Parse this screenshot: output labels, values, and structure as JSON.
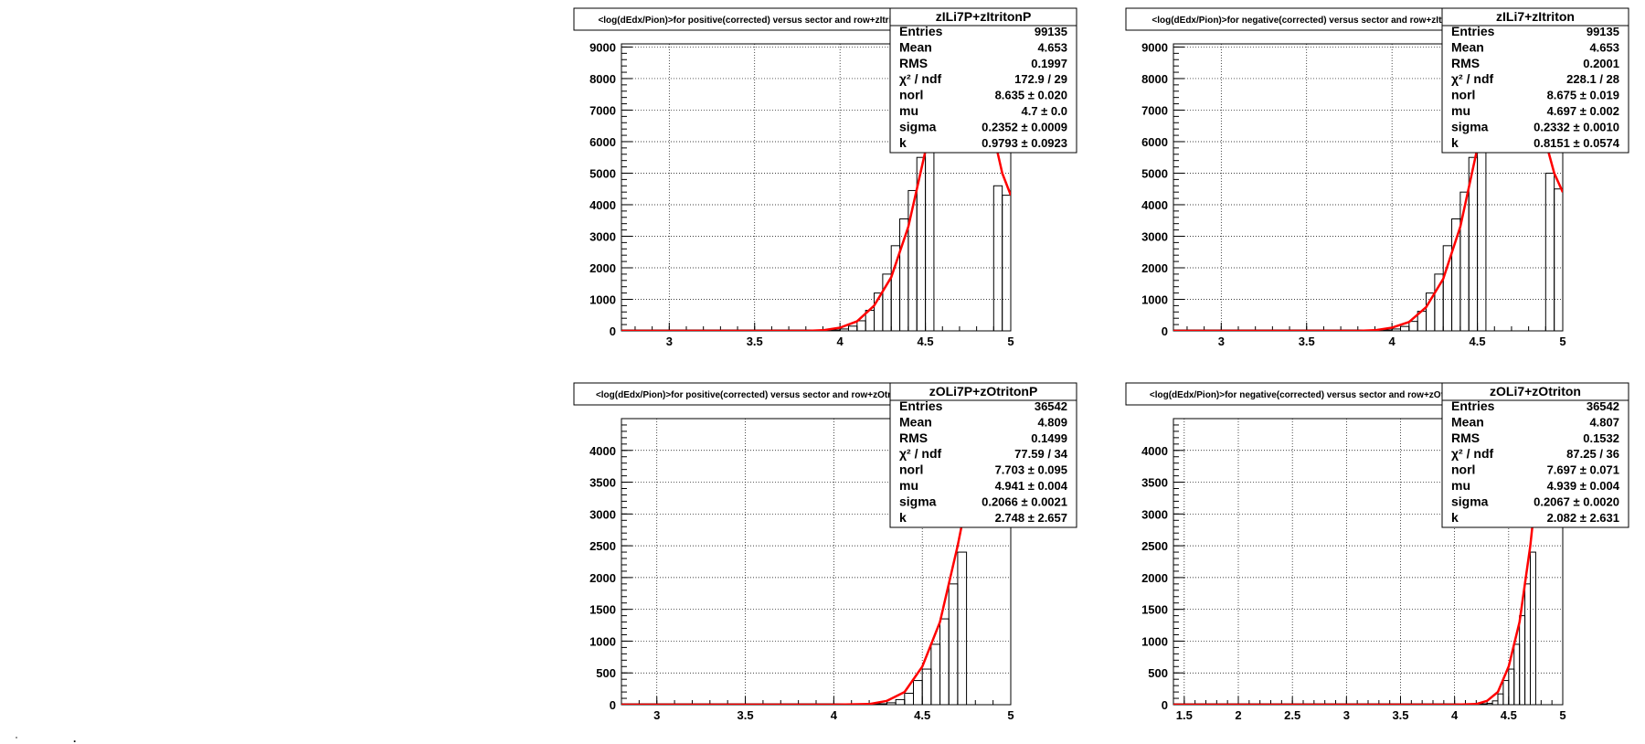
{
  "chart_data": [
    {
      "type": "histogram",
      "title": "<log(dEdx/Pion)>for positive(corrected) versus sector and row+zItritonP",
      "stats_title": "zILi7P+zItritonP",
      "x_ticks": [
        3,
        3.5,
        4,
        4.5,
        5
      ],
      "xlim": [
        2.72,
        5.0
      ],
      "y_ticks": [
        0,
        1000,
        2000,
        3000,
        4000,
        5000,
        6000,
        7000,
        8000,
        9000
      ],
      "ylim": [
        0,
        9100
      ],
      "grid": true,
      "stats": [
        {
          "name": "Entries",
          "value": "99135"
        },
        {
          "name": "Mean",
          "value": "4.653"
        },
        {
          "name": "RMS",
          "value": "0.1997"
        },
        {
          "name": "χ² / ndf",
          "value": "172.9 / 29"
        },
        {
          "name": "norl",
          "value": "8.635 ± 0.020"
        },
        {
          "name": "mu",
          "value": "4.7 ± 0.0"
        },
        {
          "name": "sigma",
          "value": "0.2352 ± 0.0009"
        },
        {
          "name": "k",
          "value": "0.9793 ± 0.0923"
        }
      ],
      "hist": {
        "x": [
          3.925,
          3.975,
          4.025,
          4.075,
          4.125,
          4.175,
          4.225,
          4.275,
          4.325,
          4.375,
          4.425,
          4.475,
          4.525
        ],
        "y": [
          10,
          30,
          60,
          150,
          320,
          650,
          1200,
          1800,
          2700,
          3550,
          4450,
          5500,
          6500
        ]
      },
      "hist_tail": {
        "x": [
          4.925,
          4.975
        ],
        "y": [
          4600,
          4300
        ]
      },
      "fit": {
        "x": [
          2.72,
          3.5,
          3.8,
          3.9,
          4.0,
          4.1,
          4.2,
          4.3,
          4.4,
          4.5,
          4.55
        ],
        "y": [
          0,
          0,
          0,
          20,
          100,
          300,
          800,
          1700,
          3300,
          5700,
          7300
        ]
      },
      "fit_tail": {
        "x": [
          4.9,
          4.95,
          5.0
        ],
        "y": [
          6200,
          5000,
          4300
        ]
      }
    },
    {
      "type": "histogram",
      "title": "<log(dEdx/Pion)>for negative(corrected) versus sector and row+zItriton",
      "stats_title": "zILi7+zItriton",
      "x_ticks": [
        3,
        3.5,
        4,
        4.5,
        5
      ],
      "xlim": [
        2.72,
        5.0
      ],
      "y_ticks": [
        0,
        1000,
        2000,
        3000,
        4000,
        5000,
        6000,
        7000,
        8000,
        9000
      ],
      "ylim": [
        0,
        9100
      ],
      "grid": true,
      "stats": [
        {
          "name": "Entries",
          "value": "99135"
        },
        {
          "name": "Mean",
          "value": "4.653"
        },
        {
          "name": "RMS",
          "value": "0.2001"
        },
        {
          "name": "χ² / ndf",
          "value": "228.1 / 28"
        },
        {
          "name": "norl",
          "value": "8.675 ± 0.019"
        },
        {
          "name": "mu",
          "value": "4.697 ± 0.002"
        },
        {
          "name": "sigma",
          "value": "0.2332 ± 0.0010"
        },
        {
          "name": "k",
          "value": "0.8151 ± 0.0574"
        }
      ],
      "hist": {
        "x": [
          3.925,
          3.975,
          4.025,
          4.075,
          4.125,
          4.175,
          4.225,
          4.275,
          4.325,
          4.375,
          4.425,
          4.475,
          4.525
        ],
        "y": [
          10,
          30,
          60,
          140,
          300,
          620,
          1200,
          1800,
          2700,
          3550,
          4400,
          5500,
          6500
        ]
      },
      "hist_tail": {
        "x": [
          4.925,
          4.975
        ],
        "y": [
          5000,
          4500
        ]
      },
      "fit": {
        "x": [
          2.72,
          3.5,
          3.8,
          3.9,
          4.0,
          4.1,
          4.2,
          4.3,
          4.4,
          4.5,
          4.55
        ],
        "y": [
          0,
          0,
          0,
          20,
          100,
          280,
          750,
          1650,
          3300,
          5800,
          7500
        ]
      },
      "fit_tail": {
        "x": [
          4.9,
          4.95,
          5.0
        ],
        "y": [
          6000,
          5000,
          4400
        ]
      }
    },
    {
      "type": "histogram",
      "title": "<log(dEdx/Pion)>for positive(corrected) versus sector and row+zOtritonP",
      "stats_title": "zOLi7P+zOtritonP",
      "x_ticks": [
        3,
        3.5,
        4,
        4.5,
        5
      ],
      "xlim": [
        2.8,
        5.0
      ],
      "y_ticks": [
        0,
        500,
        1000,
        1500,
        2000,
        2500,
        3000,
        3500,
        4000
      ],
      "ylim": [
        0,
        4500
      ],
      "grid": true,
      "stats": [
        {
          "name": "Entries",
          "value": "36542"
        },
        {
          "name": "Mean",
          "value": "4.809"
        },
        {
          "name": "RMS",
          "value": "0.1499"
        },
        {
          "name": "χ² / ndf",
          "value": "77.59 / 34"
        },
        {
          "name": "norl",
          "value": "7.703 ± 0.095"
        },
        {
          "name": "mu",
          "value": "4.941 ± 0.004"
        },
        {
          "name": "sigma",
          "value": "0.2066 ± 0.0021"
        },
        {
          "name": "k",
          "value": "2.748 ± 2.657"
        }
      ],
      "hist": {
        "x": [
          4.325,
          4.375,
          4.425,
          4.475,
          4.525,
          4.575,
          4.625,
          4.675,
          4.725
        ],
        "y": [
          30,
          80,
          180,
          380,
          560,
          950,
          1350,
          1900,
          2400
        ]
      },
      "fit": {
        "x": [
          2.8,
          4.0,
          4.2,
          4.3,
          4.4,
          4.5,
          4.6,
          4.7,
          4.75
        ],
        "y": [
          0,
          0,
          10,
          60,
          200,
          600,
          1300,
          2500,
          3200
        ]
      }
    },
    {
      "type": "histogram",
      "title": "<log(dEdx/Pion)>for negative(corrected) versus sector and row+zOtriton",
      "stats_title": "zOLi7+zOtriton",
      "x_ticks": [
        1.5,
        2,
        2.5,
        3,
        3.5,
        4,
        4.5,
        5
      ],
      "xlim": [
        1.4,
        5.0
      ],
      "y_ticks": [
        0,
        500,
        1000,
        1500,
        2000,
        2500,
        3000,
        3500,
        4000
      ],
      "ylim": [
        0,
        4500
      ],
      "grid": true,
      "stats": [
        {
          "name": "Entries",
          "value": "36542"
        },
        {
          "name": "Mean",
          "value": "4.807"
        },
        {
          "name": "RMS",
          "value": "0.1532"
        },
        {
          "name": "χ² / ndf",
          "value": "87.25 / 36"
        },
        {
          "name": "norl",
          "value": "7.697 ± 0.071"
        },
        {
          "name": "mu",
          "value": "4.939 ± 0.004"
        },
        {
          "name": "sigma",
          "value": "0.2067 ± 0.0020"
        },
        {
          "name": "k",
          "value": "2.082 ± 2.631"
        }
      ],
      "hist": {
        "x": [
          4.325,
          4.375,
          4.425,
          4.475,
          4.525,
          4.575,
          4.625,
          4.675,
          4.725
        ],
        "y": [
          20,
          60,
          170,
          380,
          560,
          950,
          1400,
          1900,
          2400
        ]
      },
      "fit": {
        "x": [
          1.4,
          4.0,
          4.2,
          4.3,
          4.4,
          4.5,
          4.6,
          4.7,
          4.75
        ],
        "y": [
          0,
          0,
          10,
          60,
          200,
          600,
          1300,
          2500,
          3300
        ]
      }
    }
  ],
  "colors": {
    "fit": "#ff0000",
    "hist": "#000000",
    "grid": "#000000",
    "background": "#ffffff"
  }
}
